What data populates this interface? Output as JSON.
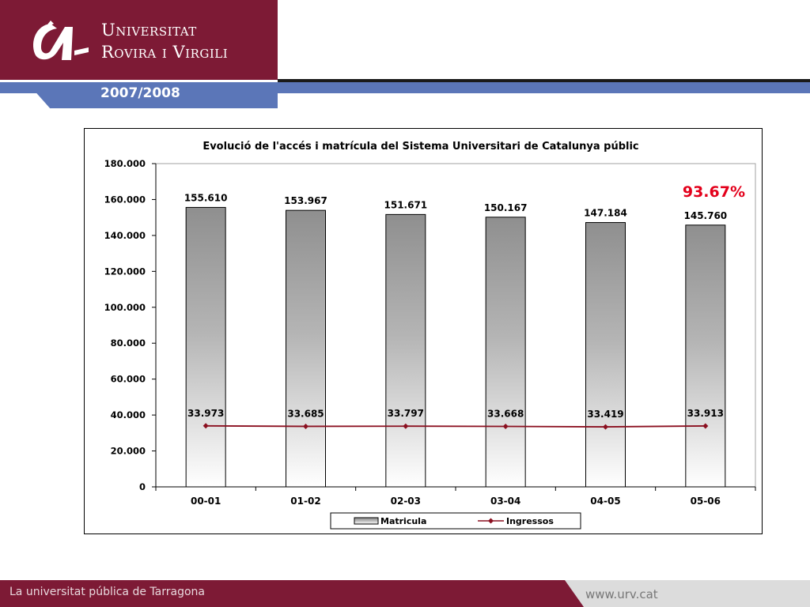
{
  "header": {
    "university_line1": "Universitat",
    "university_line2": "Rovira i Virgili",
    "year": "2007/2008"
  },
  "footer": {
    "tagline": "La universitat pública de Tarragona",
    "url": "www.urv.cat"
  },
  "chart_data": {
    "type": "bar",
    "title": "Evolució de l'accés i matrícula del Sistema Universitari de Catalunya públic",
    "categories": [
      "00-01",
      "01-02",
      "02-03",
      "03-04",
      "04-05",
      "05-06"
    ],
    "series": [
      {
        "name": "Matricula",
        "type": "bar",
        "values": [
          155610,
          153967,
          151671,
          150167,
          147184,
          145760
        ],
        "labels": [
          "155.610",
          "153.967",
          "151.671",
          "150.167",
          "147.184",
          "145.760"
        ]
      },
      {
        "name": "Ingressos",
        "type": "line",
        "values": [
          33973,
          33685,
          33797,
          33668,
          33419,
          33913
        ],
        "labels": [
          "33.973",
          "33.685",
          "33.797",
          "33.668",
          "33.419",
          "33.913"
        ]
      }
    ],
    "ylim": [
      0,
      180000
    ],
    "yticks": [
      0,
      20000,
      40000,
      60000,
      80000,
      100000,
      120000,
      140000,
      160000,
      180000
    ],
    "ytick_labels": [
      "0",
      "20.000",
      "40.000",
      "60.000",
      "80.000",
      "100.000",
      "120.000",
      "140.000",
      "160.000",
      "180.000"
    ],
    "annotation": "93.67%",
    "legend": "bottom",
    "grid": false,
    "colors": {
      "line": "#8b1020",
      "annotation": "#e3001b",
      "bar_top": "#8f8f8f",
      "bar_bottom": "#ffffff"
    }
  }
}
